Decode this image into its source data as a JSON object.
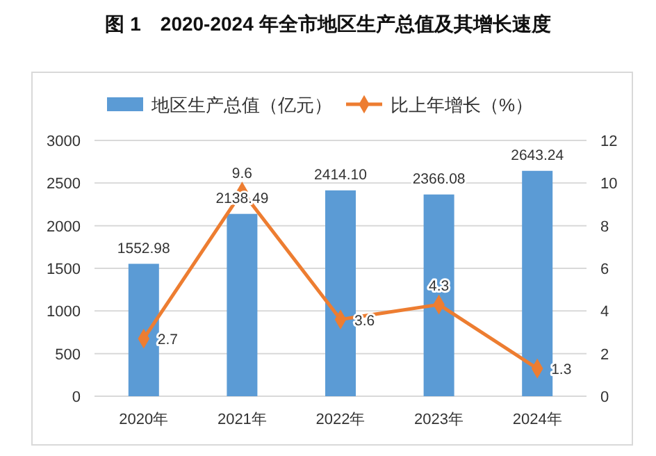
{
  "chart_data": {
    "type": "bar",
    "title": "图 1　2020-2024 年全市地区生产总值及其增长速度",
    "categories": [
      "2020年",
      "2021年",
      "2022年",
      "2023年",
      "2024年"
    ],
    "series": [
      {
        "name": "地区生产总值（亿元）",
        "color": "#5b9bd5",
        "values": [
          1552.98,
          2138.49,
          2414.1,
          2366.08,
          2643.24
        ],
        "value_labels": [
          "1552.98",
          "2138.49",
          "2414.10",
          "2366.08",
          "2643.24"
        ]
      },
      {
        "name": "比上年增长（%）",
        "type": "line",
        "axis": "y2",
        "color": "#ed7d31",
        "marker": "diamond",
        "values": [
          2.7,
          9.6,
          3.6,
          4.3,
          1.3
        ],
        "value_labels": [
          "2.7",
          "9.6",
          "3.6",
          "4.3",
          "1.3"
        ]
      }
    ],
    "ylim": [
      0,
      3000
    ],
    "yticks": [
      0,
      500,
      1000,
      1500,
      2000,
      2500,
      3000
    ],
    "y2lim": [
      0,
      12
    ],
    "y2ticks": [
      0,
      2,
      4,
      6,
      8,
      10,
      12
    ],
    "grid": "y",
    "legend": "top"
  }
}
